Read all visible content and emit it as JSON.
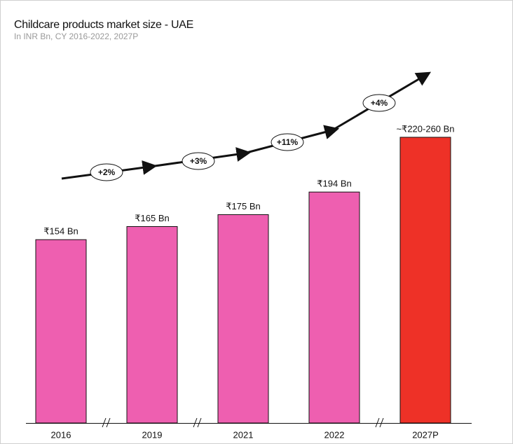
{
  "chart_data": {
    "type": "bar",
    "title": "Childcare products market size - UAE",
    "subtitle": "In INR Bn, CY 2016-2022, 2027P",
    "categories": [
      "2016",
      "2019",
      "2021",
      "2022",
      "2027P"
    ],
    "values": [
      154,
      165,
      175,
      194,
      240
    ],
    "value_labels": [
      "₹154 Bn",
      "₹165 Bn",
      "₹175 Bn",
      "₹194 Bn",
      "~₹220-260 Bn"
    ],
    "colors": [
      "#ee5fb0",
      "#ee5fb0",
      "#ee5fb0",
      "#ee5fb0",
      "#ee3127"
    ],
    "annotations": [
      "+2%",
      "+3%",
      "+11%",
      "+4%"
    ]
  }
}
